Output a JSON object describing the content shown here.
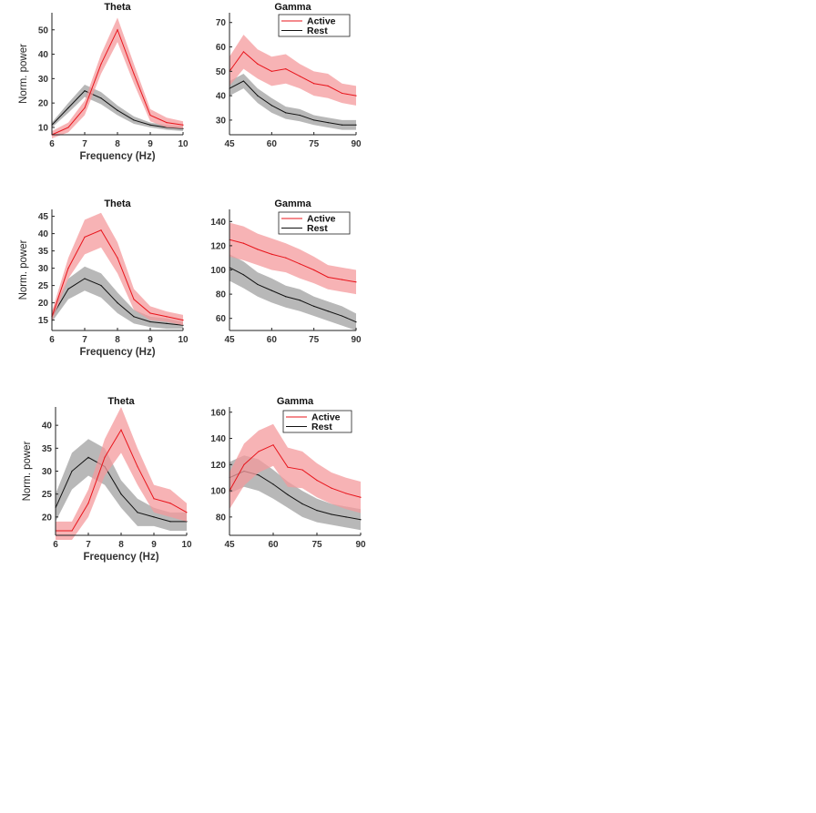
{
  "colors": {
    "active": "#e8141b",
    "active_band": "#f49a9c",
    "rest": "#111111",
    "rest_band": "#9a9a9a"
  },
  "chart_data": [
    {
      "type": "line",
      "title": "Theta",
      "xlabel": "Frequency (Hz)",
      "ylabel": "Norm. power",
      "xlim": [
        6,
        10
      ],
      "ylim": [
        7,
        57
      ],
      "xticks": [
        6,
        7,
        8,
        9,
        10
      ],
      "yticks": [
        10,
        20,
        30,
        40,
        50
      ],
      "series": [
        {
          "key": "active",
          "x": [
            6,
            6.5,
            7,
            7.5,
            8,
            8.5,
            9,
            9.5,
            10
          ],
          "y": [
            7,
            10,
            18,
            36,
            50,
            32,
            15,
            12,
            11
          ],
          "err": [
            1.5,
            2,
            3,
            4,
            5,
            4,
            2.5,
            2,
            1.5
          ]
        },
        {
          "key": "rest",
          "x": [
            6,
            6.5,
            7,
            7.5,
            8,
            8.5,
            9,
            9.5,
            10
          ],
          "y": [
            11,
            18,
            25,
            22,
            17,
            13,
            11,
            10,
            9.5
          ],
          "err": [
            1,
            2,
            2.5,
            2.5,
            2,
            1.5,
            1,
            1,
            1
          ]
        }
      ]
    },
    {
      "type": "line",
      "title": "Gamma",
      "xlim": [
        45,
        90
      ],
      "ylim": [
        24,
        74
      ],
      "xticks": [
        45,
        60,
        75,
        90
      ],
      "yticks": [
        30,
        40,
        50,
        60,
        70
      ],
      "legend": [
        "Active",
        "Rest"
      ],
      "legend_position": "top-right",
      "series": [
        {
          "key": "active",
          "name": "Active",
          "x": [
            45,
            50,
            55,
            60,
            65,
            70,
            75,
            80,
            85,
            90
          ],
          "y": [
            50,
            58,
            53,
            50,
            51,
            48,
            45,
            44,
            41,
            40
          ],
          "err": [
            6,
            7,
            6,
            6,
            6,
            5,
            5,
            5,
            4,
            4
          ]
        },
        {
          "key": "rest",
          "name": "Rest",
          "x": [
            45,
            50,
            55,
            60,
            65,
            70,
            75,
            80,
            85,
            90
          ],
          "y": [
            43,
            46,
            40,
            36,
            33,
            32,
            30,
            29,
            28,
            28
          ],
          "err": [
            3,
            3,
            3,
            3,
            2.5,
            2.5,
            2,
            2,
            2,
            2
          ]
        }
      ]
    },
    {
      "type": "line",
      "title": "Theta",
      "xlabel": "Frequency (Hz)",
      "ylabel": "Norm. power",
      "xlim": [
        6,
        10
      ],
      "ylim": [
        12,
        47
      ],
      "xticks": [
        6,
        7,
        8,
        9,
        10
      ],
      "yticks": [
        15,
        20,
        25,
        30,
        35,
        40,
        45
      ],
      "series": [
        {
          "key": "active",
          "x": [
            6,
            6.5,
            7,
            7.5,
            8,
            8.5,
            9,
            9.5,
            10
          ],
          "y": [
            16,
            30,
            39,
            41,
            33,
            21,
            17,
            16,
            15
          ],
          "err": [
            1.5,
            3,
            5,
            5,
            4.5,
            3,
            2,
            1.5,
            1.5
          ]
        },
        {
          "key": "rest",
          "x": [
            6,
            6.5,
            7,
            7.5,
            8,
            8.5,
            9,
            9.5,
            10
          ],
          "y": [
            16,
            24,
            27,
            25,
            20,
            16,
            14.5,
            14,
            13.5
          ],
          "err": [
            1.5,
            3,
            3.5,
            3.5,
            3,
            2,
            1.5,
            1.5,
            1
          ]
        }
      ]
    },
    {
      "type": "line",
      "title": "Gamma",
      "xlim": [
        45,
        90
      ],
      "ylim": [
        50,
        150
      ],
      "xticks": [
        45,
        60,
        75,
        90
      ],
      "yticks": [
        60,
        80,
        100,
        120,
        140
      ],
      "legend": [
        "Active",
        "Rest"
      ],
      "legend_position": "top-right",
      "series": [
        {
          "key": "active",
          "name": "Active",
          "x": [
            45,
            50,
            55,
            60,
            65,
            70,
            75,
            80,
            85,
            90
          ],
          "y": [
            125,
            122,
            117,
            113,
            110,
            105,
            100,
            94,
            92,
            90
          ],
          "err": [
            14,
            14,
            13,
            13,
            12,
            12,
            11,
            10,
            10,
            10
          ]
        },
        {
          "key": "rest",
          "name": "Rest",
          "x": [
            45,
            50,
            55,
            60,
            65,
            70,
            75,
            80,
            85,
            90
          ],
          "y": [
            102,
            96,
            88,
            83,
            78,
            75,
            70,
            66,
            62,
            57
          ],
          "err": [
            11,
            11,
            10,
            10,
            9,
            9,
            8,
            8,
            8,
            7
          ]
        }
      ]
    },
    {
      "type": "line",
      "title": "Theta",
      "xlabel": "Frequency (Hz)",
      "ylabel": "Norm. power",
      "xlim": [
        6,
        10
      ],
      "ylim": [
        16,
        44
      ],
      "xticks": [
        6,
        7,
        8,
        9,
        10
      ],
      "yticks": [
        20,
        25,
        30,
        35,
        40
      ],
      "series": [
        {
          "key": "active",
          "x": [
            6,
            6.5,
            7,
            7.5,
            8,
            8.5,
            9,
            9.5,
            10
          ],
          "y": [
            17,
            17,
            23,
            33,
            39,
            31,
            24,
            23,
            21
          ],
          "err": [
            2,
            2,
            3,
            4,
            5,
            4,
            3,
            3,
            2
          ]
        },
        {
          "key": "rest",
          "x": [
            6,
            6.5,
            7,
            7.5,
            8,
            8.5,
            9,
            9.5,
            10
          ],
          "y": [
            22,
            30,
            33,
            31,
            25,
            21,
            20,
            19,
            19
          ],
          "err": [
            3,
            4,
            4,
            4,
            3,
            3,
            2,
            2,
            2
          ]
        }
      ]
    },
    {
      "type": "line",
      "title": "Gamma",
      "xlim": [
        45,
        90
      ],
      "ylim": [
        66,
        164
      ],
      "xticks": [
        45,
        60,
        75,
        90
      ],
      "yticks": [
        80,
        100,
        120,
        140,
        160
      ],
      "legend": [
        "Active",
        "Rest"
      ],
      "legend_position": "top-right",
      "series": [
        {
          "key": "active",
          "name": "Active",
          "x": [
            45,
            50,
            55,
            60,
            65,
            70,
            75,
            80,
            85,
            90
          ],
          "y": [
            100,
            120,
            130,
            135,
            118,
            116,
            108,
            102,
            98,
            95
          ],
          "err": [
            14,
            16,
            16,
            16,
            15,
            14,
            13,
            12,
            12,
            12
          ]
        },
        {
          "key": "rest",
          "name": "Rest",
          "x": [
            45,
            50,
            55,
            60,
            65,
            70,
            75,
            80,
            85,
            90
          ],
          "y": [
            110,
            115,
            112,
            105,
            97,
            90,
            85,
            82,
            80,
            78
          ],
          "err": [
            12,
            12,
            12,
            11,
            10,
            10,
            9,
            8,
            8,
            8
          ]
        }
      ]
    }
  ]
}
